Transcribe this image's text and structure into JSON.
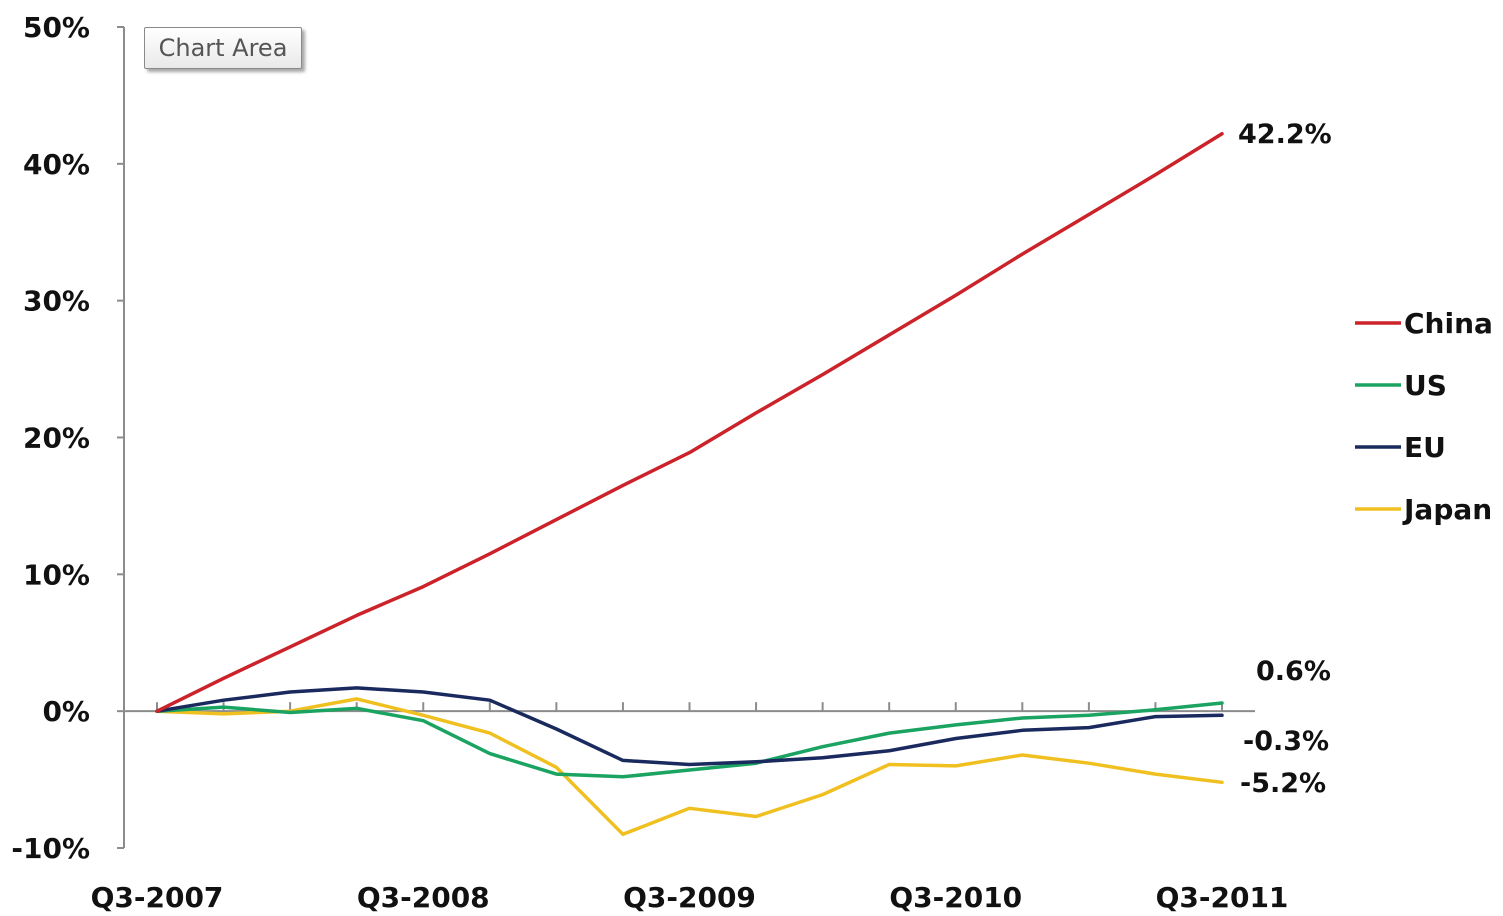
{
  "tooltip": {
    "text": "Chart Area"
  },
  "chart_data": {
    "type": "line",
    "title": "",
    "xlabel": "",
    "ylabel": "",
    "ylim": [
      -10,
      50
    ],
    "y_ticks": [
      "50%",
      "40%",
      "30%",
      "20%",
      "10%",
      "0%",
      "-10%"
    ],
    "x_tick_labels": [
      "Q3-2007",
      "Q3-2008",
      "Q3-2009",
      "Q3-2010",
      "Q3-2011"
    ],
    "x": [
      "Q3-2007",
      "Q4-2007",
      "Q1-2008",
      "Q2-2008",
      "Q3-2008",
      "Q4-2008",
      "Q1-2009",
      "Q2-2009",
      "Q3-2009",
      "Q4-2009",
      "Q1-2010",
      "Q2-2010",
      "Q3-2010",
      "Q4-2010",
      "Q1-2011",
      "Q2-2011",
      "Q3-2011"
    ],
    "grid": false,
    "legend_position": "right",
    "series": [
      {
        "name": "China",
        "color": "#cc2229",
        "values": [
          0,
          2.4,
          4.7,
          7.0,
          9.1,
          11.5,
          14.0,
          16.5,
          18.9,
          21.8,
          24.6,
          27.5,
          30.4,
          33.4,
          36.3,
          39.2,
          42.2
        ],
        "end_label": "42.2%"
      },
      {
        "name": "US",
        "color": "#1aa361",
        "values": [
          0,
          0.3,
          -0.1,
          0.2,
          -0.7,
          -3.1,
          -4.6,
          -4.8,
          -4.3,
          -3.8,
          -2.6,
          -1.6,
          -1.0,
          -0.5,
          -0.3,
          0.1,
          0.6
        ],
        "end_label": "0.6%"
      },
      {
        "name": "EU",
        "color": "#1b2a5e",
        "values": [
          0,
          0.8,
          1.4,
          1.7,
          1.4,
          0.8,
          -1.3,
          -3.6,
          -3.9,
          -3.7,
          -3.4,
          -2.9,
          -2.0,
          -1.4,
          -1.2,
          -0.4,
          -0.3
        ],
        "end_label": "-0.3%"
      },
      {
        "name": "Japan",
        "color": "#f0c020",
        "values": [
          0,
          -0.2,
          0.0,
          0.9,
          -0.3,
          -1.6,
          -4.1,
          -9.0,
          -7.1,
          -7.7,
          -6.1,
          -3.9,
          -4.0,
          -3.2,
          -3.8,
          -4.6,
          -5.2
        ],
        "end_label": "-5.2%"
      }
    ]
  }
}
